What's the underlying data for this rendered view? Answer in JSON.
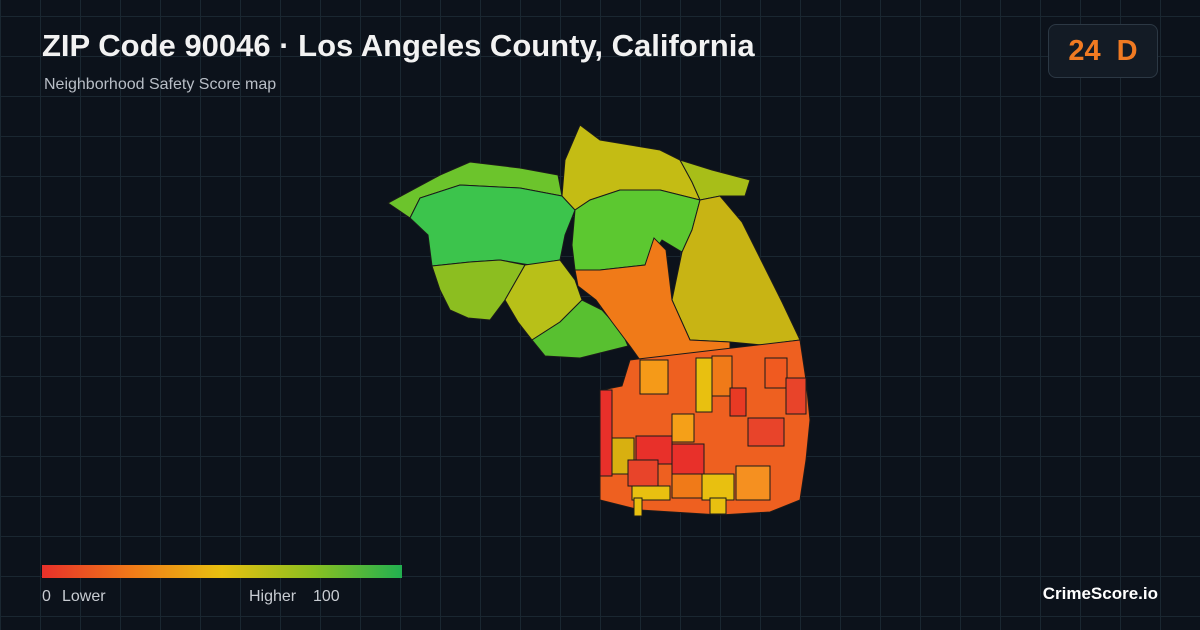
{
  "header": {
    "title": "ZIP Code 90046 · Los Angeles County, California",
    "subtitle": "Neighborhood Safety Score map"
  },
  "score": {
    "value": 24,
    "grade": "D"
  },
  "legend": {
    "min": 0,
    "min_label": "Lower",
    "max_label": "Higher",
    "max": 100
  },
  "brand": "CrimeScore.io"
}
